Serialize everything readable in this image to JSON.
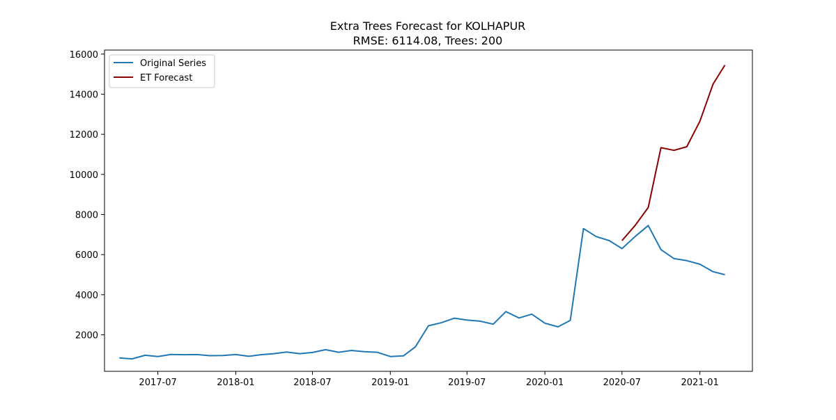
{
  "chart_data": {
    "type": "line",
    "title": "Extra Trees Forecast for KOLHAPUR",
    "subtitle": "RMSE: 6114.08, Trees: 200",
    "xlabel": "",
    "ylabel": "",
    "grid": false,
    "legend_position": "top-left",
    "x_ticks": [
      "2017-07",
      "2018-01",
      "2018-07",
      "2019-01",
      "2019-07",
      "2020-01",
      "2020-07",
      "2021-01"
    ],
    "y_ticks": [
      2000,
      4000,
      6000,
      8000,
      10000,
      12000,
      14000,
      16000
    ],
    "xlim": [
      "2017-02-25",
      "2021-05-05"
    ],
    "ylim": [
      180,
      16200
    ],
    "series": [
      {
        "name": "Original Series",
        "color": "#1f77b4",
        "x": [
          "2017-04",
          "2017-05",
          "2017-06",
          "2017-07",
          "2017-08",
          "2017-09",
          "2017-10",
          "2017-11",
          "2017-12",
          "2018-01",
          "2018-02",
          "2018-03",
          "2018-04",
          "2018-05",
          "2018-06",
          "2018-07",
          "2018-08",
          "2018-09",
          "2018-10",
          "2018-11",
          "2018-12",
          "2019-01",
          "2019-02",
          "2019-03",
          "2019-04",
          "2019-05",
          "2019-06",
          "2019-07",
          "2019-08",
          "2019-09",
          "2019-10",
          "2019-11",
          "2019-12",
          "2020-01",
          "2020-02",
          "2020-03",
          "2020-04",
          "2020-05",
          "2020-06",
          "2020-07",
          "2020-08",
          "2020-09",
          "2020-10",
          "2020-11",
          "2020-12",
          "2021-01",
          "2021-02",
          "2021-03"
        ],
        "values": [
          850,
          800,
          980,
          920,
          1020,
          1010,
          1015,
          960,
          970,
          1015,
          930,
          1010,
          1060,
          1140,
          1060,
          1120,
          1260,
          1130,
          1220,
          1160,
          1130,
          920,
          950,
          1400,
          2450,
          2600,
          2830,
          2740,
          2680,
          2530,
          3160,
          2840,
          3030,
          2580,
          2400,
          2720,
          7300,
          6900,
          6700,
          6300,
          6900,
          7450,
          6250,
          5800,
          5700,
          5520,
          5150,
          5000
        ]
      },
      {
        "name": "ET Forecast",
        "color": "#8b0000",
        "x": [
          "2020-07",
          "2020-08",
          "2020-09",
          "2020-10",
          "2020-11",
          "2020-12",
          "2021-01",
          "2021-02",
          "2021-03"
        ],
        "values": [
          6700,
          7450,
          8350,
          11330,
          11200,
          11380,
          12650,
          14500,
          15450
        ]
      }
    ]
  }
}
